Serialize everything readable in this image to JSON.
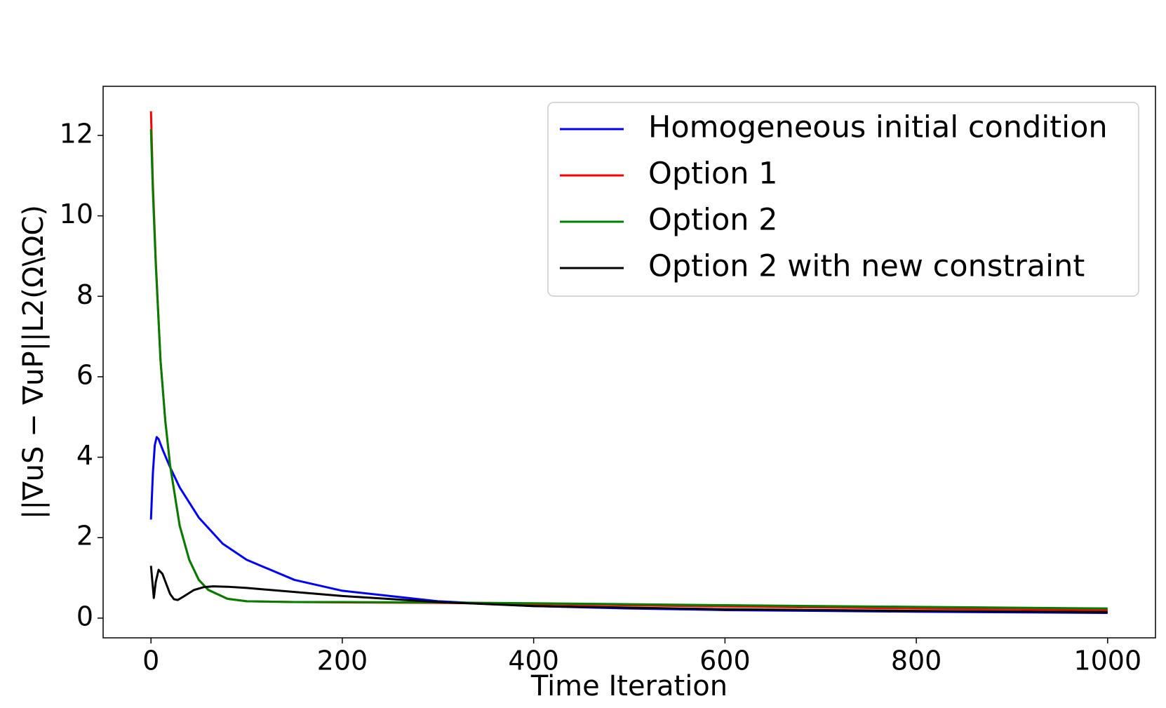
{
  "chart_data": {
    "type": "line",
    "xlabel": "Time Iteration",
    "ylabel": "||∇uS − ∇uP||L2(Ω\\ΩC)",
    "legend": "upper right",
    "xlim": [
      -50,
      1050
    ],
    "ylim": [
      -0.49,
      13.22
    ],
    "xticks": [
      0,
      200,
      400,
      600,
      800,
      1000
    ],
    "yticks": [
      0,
      2,
      4,
      6,
      8,
      10,
      12
    ],
    "series": [
      {
        "name": "Homogeneous initial condition",
        "color": "#0000ff",
        "x": [
          0,
          2,
          4,
          6,
          8,
          12,
          20,
          30,
          50,
          75,
          100,
          150,
          200,
          300,
          400,
          500,
          600,
          800,
          1000
        ],
        "values": [
          2.45,
          3.6,
          4.3,
          4.5,
          4.45,
          4.2,
          3.75,
          3.25,
          2.5,
          1.85,
          1.45,
          0.95,
          0.68,
          0.42,
          0.3,
          0.24,
          0.2,
          0.16,
          0.13
        ]
      },
      {
        "name": "Option 1",
        "color": "#ff0000",
        "x": [
          0,
          2,
          5,
          10,
          15,
          20,
          30,
          40,
          50,
          60,
          80,
          100,
          150,
          200,
          300,
          400,
          600,
          800,
          1000
        ],
        "values": [
          12.6,
          10.8,
          8.9,
          6.4,
          4.9,
          3.8,
          2.3,
          1.45,
          0.95,
          0.7,
          0.48,
          0.42,
          0.4,
          0.39,
          0.38,
          0.35,
          0.29,
          0.24,
          0.2
        ]
      },
      {
        "name": "Option 2",
        "color": "#008000",
        "x": [
          0,
          2,
          5,
          10,
          15,
          20,
          30,
          40,
          50,
          60,
          80,
          100,
          150,
          200,
          300,
          400,
          600,
          800,
          1000
        ],
        "values": [
          12.15,
          10.6,
          8.8,
          6.4,
          4.9,
          3.8,
          2.3,
          1.45,
          0.95,
          0.7,
          0.48,
          0.42,
          0.4,
          0.4,
          0.39,
          0.37,
          0.32,
          0.28,
          0.24
        ]
      },
      {
        "name": "Option 2 with new constraint",
        "color": "#000000",
        "x": [
          0,
          3,
          5,
          8,
          12,
          16,
          20,
          24,
          28,
          35,
          45,
          55,
          65,
          80,
          100,
          150,
          200,
          300,
          400,
          600,
          800,
          1000
        ],
        "values": [
          1.3,
          0.5,
          0.9,
          1.2,
          1.1,
          0.85,
          0.6,
          0.47,
          0.45,
          0.55,
          0.7,
          0.77,
          0.79,
          0.78,
          0.75,
          0.65,
          0.55,
          0.4,
          0.3,
          0.22,
          0.18,
          0.15
        ]
      }
    ]
  }
}
